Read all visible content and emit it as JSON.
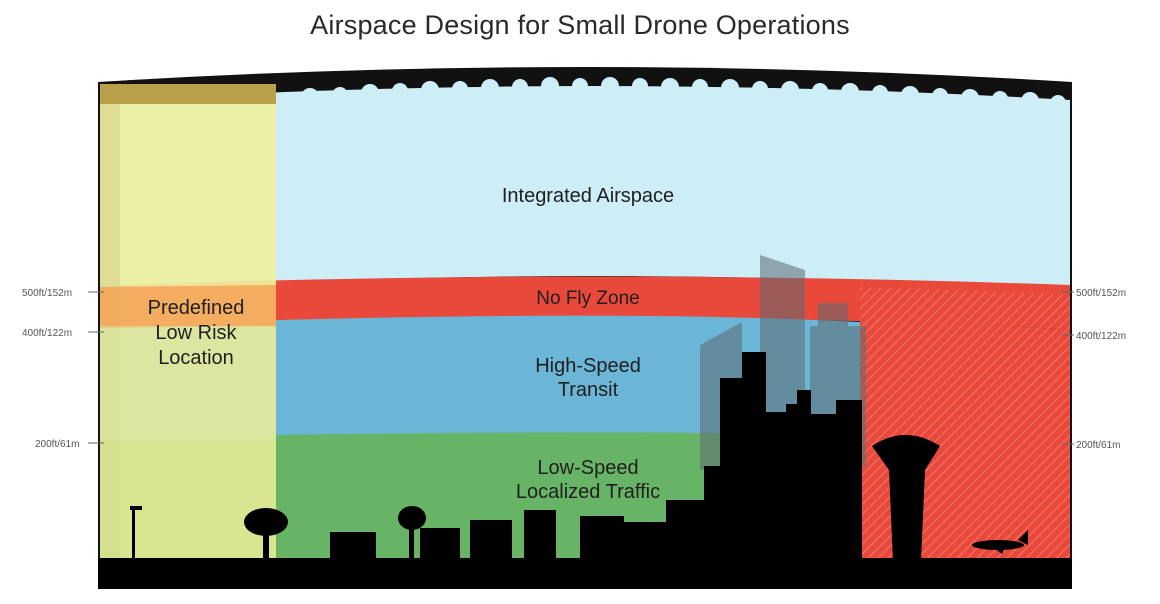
{
  "title": "Airspace Design for Small Drone Operations",
  "zones": {
    "integrated": "Integrated Airspace",
    "no_fly": "No Fly Zone",
    "high_speed": [
      "High-Speed",
      "Transit"
    ],
    "low_speed": [
      "Low-Speed",
      "Localized Traffic"
    ],
    "low_risk": [
      "Predefined",
      "Low Risk",
      "Location"
    ]
  },
  "altitudes": {
    "left": [
      "500ft/152m",
      "400ft/122m",
      "200ft/61m"
    ],
    "right": [
      "500ft/152m",
      "400ft/122m",
      "200ft/61m"
    ]
  },
  "colors": {
    "integrated": "#cdeef6",
    "no_fly": "#e8493b",
    "high_speed": "#6bb6d6",
    "low_speed": "#68b466",
    "low_risk": "#eff0a0",
    "ground": "#000000"
  }
}
